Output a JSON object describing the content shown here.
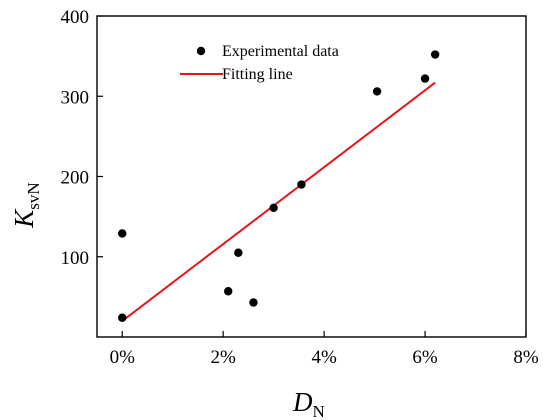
{
  "chart_data": {
    "type": "scatter",
    "xlabel": {
      "main": "D",
      "sub": "N"
    },
    "ylabel": {
      "main": "K",
      "sub": "svN"
    },
    "xlim": [
      -0.5,
      8.0
    ],
    "ylim": [
      0,
      400
    ],
    "x_ticks": [
      {
        "value": 0,
        "label": "0%"
      },
      {
        "value": 2,
        "label": "2%"
      },
      {
        "value": 4,
        "label": "4%"
      },
      {
        "value": 6,
        "label": "6%"
      },
      {
        "value": 8,
        "label": "8%"
      }
    ],
    "y_ticks": [
      {
        "value": 100,
        "label": "100"
      },
      {
        "value": 200,
        "label": "200"
      },
      {
        "value": 300,
        "label": "300"
      },
      {
        "value": 400,
        "label": "400"
      }
    ],
    "grid": false,
    "legend_position": "top-left",
    "series": [
      {
        "name": "Experimental data",
        "kind": "scatter",
        "color": "#000000",
        "points": [
          {
            "x": 0.0,
            "y": 24
          },
          {
            "x": 0.0,
            "y": 129
          },
          {
            "x": 2.1,
            "y": 57
          },
          {
            "x": 2.3,
            "y": 105
          },
          {
            "x": 2.6,
            "y": 43
          },
          {
            "x": 3.0,
            "y": 161
          },
          {
            "x": 3.55,
            "y": 190
          },
          {
            "x": 5.05,
            "y": 306
          },
          {
            "x": 6.0,
            "y": 322
          },
          {
            "x": 6.2,
            "y": 352
          }
        ]
      },
      {
        "name": "Fitting line",
        "kind": "line",
        "color": "#e8141b",
        "points": [
          {
            "x": 0.0,
            "y": 20
          },
          {
            "x": 6.2,
            "y": 317
          }
        ]
      }
    ]
  }
}
